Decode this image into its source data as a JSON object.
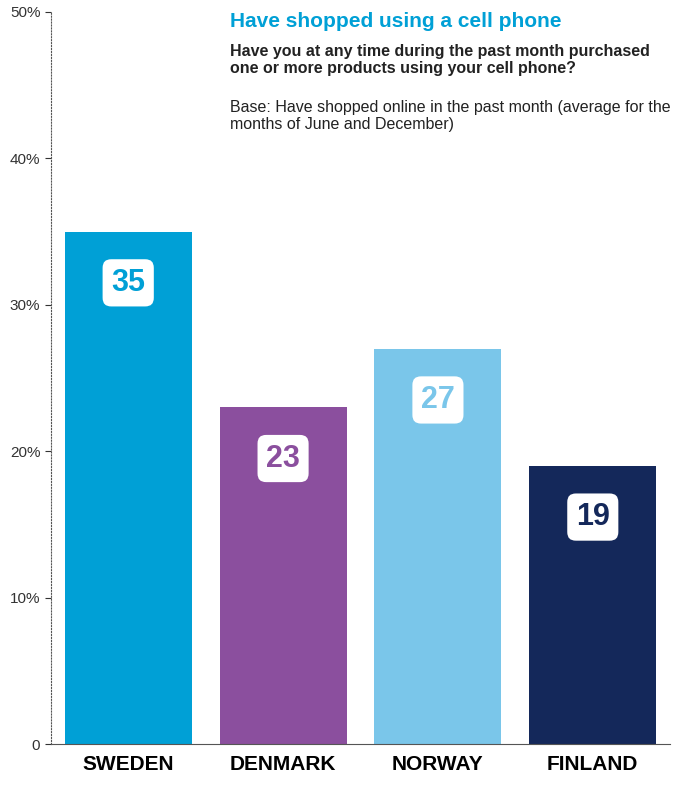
{
  "chart_data": {
    "type": "bar",
    "title": "Have shopped using a cell phone",
    "subtitle": "Have you at any time during the past month purchased one or more products using your cell phone?",
    "annotations": [
      "Base: Have shopped online in the past month (average for the months of June and December)"
    ],
    "categories": [
      "SWEDEN",
      "DENMARK",
      "NORWAY",
      "FINLAND"
    ],
    "values": [
      35,
      23,
      27,
      19
    ],
    "colors": [
      "#00a0d6",
      "#8b4f9e",
      "#7ac6ea",
      "#14285a"
    ],
    "ylim": [
      0,
      50
    ],
    "yticks": [
      0,
      {
        "value": 10,
        "label": "10%"
      },
      {
        "value": 20,
        "label": "20%"
      },
      {
        "value": 30,
        "label": "30%"
      },
      {
        "value": 40,
        "label": "40%"
      },
      {
        "value": 50,
        "label": "50%"
      }
    ],
    "grid": false,
    "data_labels": true
  }
}
